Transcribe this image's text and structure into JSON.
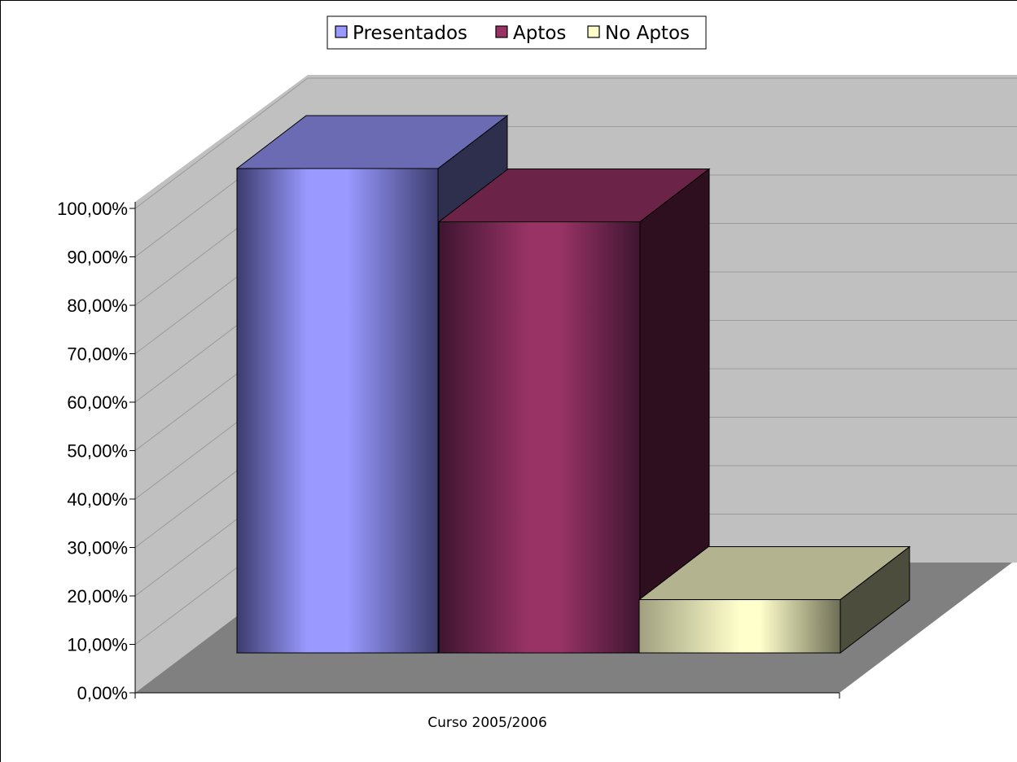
{
  "chart_data": {
    "type": "bar",
    "categories": [
      "Curso 2005/2006"
    ],
    "series": [
      {
        "name": "Presentados",
        "values": [
          100
        ],
        "color": "#9999ff"
      },
      {
        "name": "Aptos",
        "values": [
          89
        ],
        "color": "#993366"
      },
      {
        "name": "No Aptos",
        "values": [
          11
        ],
        "color": "#ffffcc"
      }
    ],
    "ylim": [
      0,
      100
    ],
    "yticks": [
      "0,00%",
      "10,00%",
      "20,00%",
      "30,00%",
      "40,00%",
      "50,00%",
      "60,00%",
      "70,00%",
      "80,00%",
      "90,00%",
      "100,00%"
    ],
    "legend_position": "top-center",
    "grid": true,
    "style": "3d-column",
    "colors": {
      "back_wall": "#c0c0c0",
      "side_wall": "#c0c0c0",
      "floor": "#808080"
    }
  }
}
